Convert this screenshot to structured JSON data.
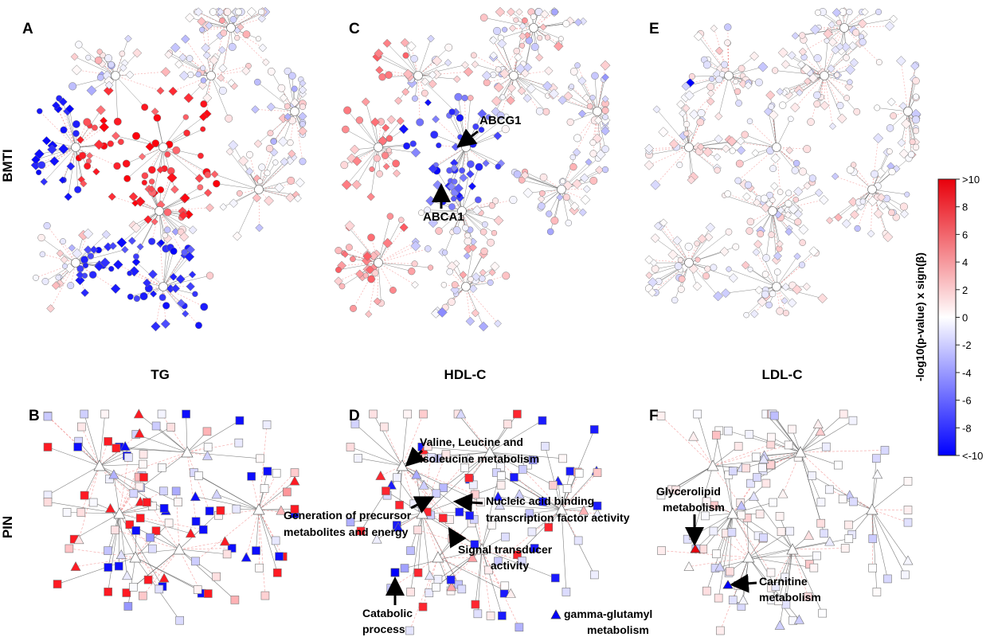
{
  "panels": [
    {
      "letter": "A",
      "column_label": "TG"
    },
    {
      "letter": "B",
      "column_label": ""
    },
    {
      "letter": "C",
      "column_label": "HDL-C"
    },
    {
      "letter": "D",
      "column_label": ""
    },
    {
      "letter": "E",
      "column_label": "LDL-C"
    },
    {
      "letter": "F",
      "column_label": ""
    }
  ],
  "row_labels": [
    "BMTI",
    "PIN"
  ],
  "colorbar": {
    "label": "-log10(p-value) x sign(β)",
    "ticks": [
      ">10",
      "8",
      "6",
      "4",
      "2",
      "0",
      "-2",
      "-4",
      "-6",
      "-8",
      "<-10"
    ],
    "colors": {
      "max": "#e8000b",
      "mid": "#ffffff",
      "min": "#0000ff"
    }
  },
  "annotations": [
    {
      "panel": "C",
      "lines": [
        "ABCG1"
      ]
    },
    {
      "panel": "C",
      "lines": [
        "ABCA1"
      ]
    },
    {
      "panel": "D",
      "lines": [
        "Valine, Leucine and",
        "Isoleucine metabolism"
      ]
    },
    {
      "panel": "D",
      "lines": [
        "Generation of precursor",
        "metabolites and energy"
      ]
    },
    {
      "panel": "D",
      "lines": [
        "Nucleic acid binding",
        "transcription factor activity"
      ]
    },
    {
      "panel": "D",
      "lines": [
        "Signal transducer",
        "activity"
      ]
    },
    {
      "panel": "D",
      "lines": [
        "Catabolic",
        "process"
      ]
    },
    {
      "panel": "D",
      "lines": [
        "gamma-glutamyl",
        "metabolism"
      ]
    },
    {
      "panel": "F",
      "lines": [
        "Glycerolipid",
        "metabolism"
      ]
    },
    {
      "panel": "F",
      "lines": [
        "Carnitine",
        "metabolism"
      ]
    }
  ],
  "style": {
    "edge_gray": "#555555",
    "edge_pink": "#f08080",
    "node_stroke": "#777777"
  }
}
